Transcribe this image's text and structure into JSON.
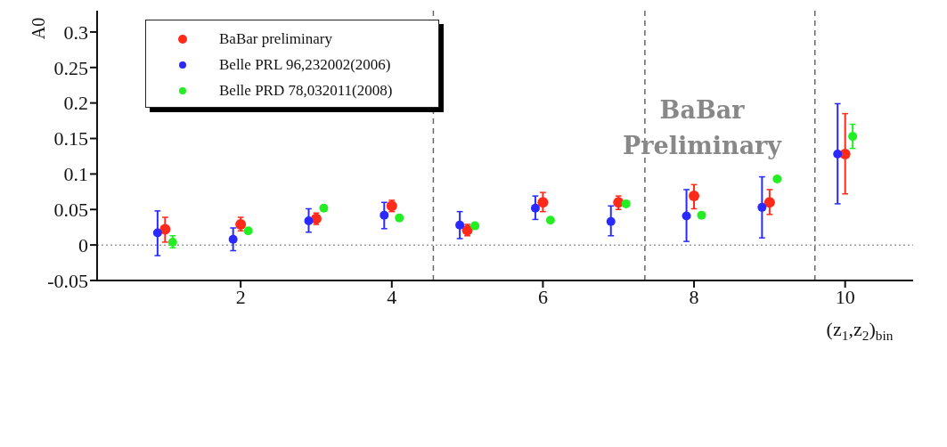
{
  "chart_data": {
    "type": "scatter",
    "ylabel": "A0",
    "xlabel": "(z$_{1}$,z$_{2}$)$_{bin}$",
    "annotations": [
      "BaBar Preliminary"
    ],
    "xlim": [
      0.1,
      10.9
    ],
    "xticks": [
      2,
      4,
      6,
      8,
      10
    ],
    "ylim": [
      -0.05,
      0.33
    ],
    "yticks": [
      -0.05,
      0,
      0.05,
      0.1,
      0.15,
      0.2,
      0.25,
      0.3
    ],
    "grid": false,
    "legend": "top left",
    "marker": "circle",
    "ref_lines": [
      {
        "axis": "y",
        "value": 0,
        "line_style": "dotted",
        "color": "#999999"
      },
      {
        "axis": "x",
        "value": 4.55,
        "line_style": "dashed",
        "color": "#666666"
      },
      {
        "axis": "x",
        "value": 7.35,
        "line_style": "dashed",
        "color": "#666666"
      },
      {
        "axis": "x",
        "value": 9.6,
        "line_style": "dashed",
        "color": "#666666"
      }
    ],
    "series": [
      {
        "name": "BaBar preliminary",
        "color": "#ff2a1a",
        "x": [
          1,
          2,
          3,
          4,
          5,
          6,
          7,
          8,
          9,
          10
        ],
        "values": [
          0.022,
          0.029,
          0.037,
          0.055,
          0.021,
          0.06,
          0.06,
          0.069,
          0.06,
          0.128
        ],
        "errors": [
          [
            0.004,
            0.039
          ],
          [
            0.02,
            0.039
          ],
          [
            0.029,
            0.045
          ],
          [
            0.047,
            0.063
          ],
          [
            0.013,
            0.029
          ],
          [
            0.047,
            0.074
          ],
          [
            0.05,
            0.069
          ],
          [
            0.051,
            0.085
          ],
          [
            0.043,
            0.078
          ],
          [
            0.072,
            0.185
          ]
        ]
      },
      {
        "name": "Belle PRL 96,232002(2006)",
        "color": "#2a2aff",
        "x": [
          0.9,
          1.9,
          2.9,
          3.9,
          4.9,
          5.9,
          6.9,
          7.9,
          8.9,
          9.9
        ],
        "values": [
          0.017,
          0.008,
          0.034,
          0.042,
          0.028,
          0.052,
          0.033,
          0.041,
          0.053,
          0.128
        ],
        "errors": [
          [
            -0.015,
            0.048
          ],
          [
            -0.008,
            0.024
          ],
          [
            0.018,
            0.051
          ],
          [
            0.023,
            0.06
          ],
          [
            0.009,
            0.047
          ],
          [
            0.036,
            0.069
          ],
          [
            0.013,
            0.055
          ],
          [
            0.005,
            0.078
          ],
          [
            0.01,
            0.096
          ],
          [
            0.058,
            0.199
          ]
        ]
      },
      {
        "name": "Belle PRD 78,032011(2008)",
        "color": "#22ee22",
        "x": [
          1.1,
          2.1,
          3.1,
          4.1,
          5.1,
          6.1,
          7.1,
          8.1,
          9.1,
          10.1
        ],
        "values": [
          0.004,
          0.02,
          0.052,
          0.038,
          0.027,
          0.035,
          0.058,
          0.042,
          0.093,
          0.153
        ],
        "errors": [
          [
            -0.004,
            0.013
          ],
          null,
          null,
          null,
          null,
          null,
          null,
          null,
          null,
          [
            0.136,
            0.17
          ]
        ]
      }
    ]
  }
}
